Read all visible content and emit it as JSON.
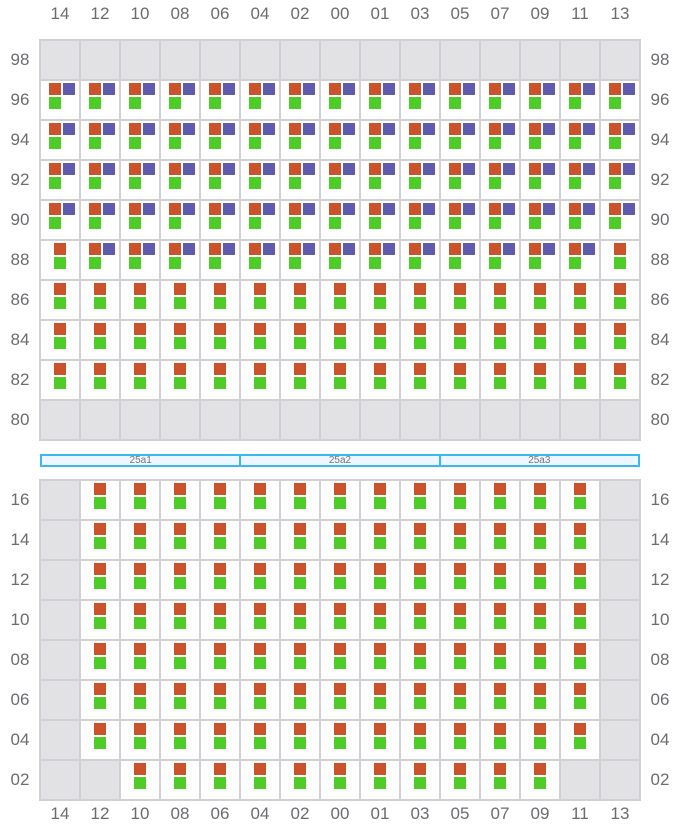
{
  "columns": [
    "14",
    "12",
    "10",
    "08",
    "06",
    "04",
    "02",
    "00",
    "01",
    "03",
    "05",
    "07",
    "09",
    "11",
    "13"
  ],
  "colors": {
    "orange": "#cc5229",
    "purple": "#5e5aad",
    "green": "#4ecc28",
    "empty": "#e2e2e4",
    "banner": "#3bb8f0"
  },
  "legend_codes": {
    "E": "empty",
    "P": "orange+purple+green",
    "S": "orange+green"
  },
  "top_section": {
    "rows": [
      {
        "label": "98",
        "cells": "EEEEEEEEEEEEEEE"
      },
      {
        "label": "96",
        "cells": "PPPPPPPPPPPPPPP"
      },
      {
        "label": "94",
        "cells": "PPPPPPPPPPPPPPP"
      },
      {
        "label": "92",
        "cells": "PPPPPPPPPPPPPPP"
      },
      {
        "label": "90",
        "cells": "PPPPPPPPPPPPPPP"
      },
      {
        "label": "88",
        "cells": "SPPPPPPPPPPPPPS"
      },
      {
        "label": "86",
        "cells": "SSSSSSSSSSSSSSS"
      },
      {
        "label": "84",
        "cells": "SSSSSSSSSSSSSSS"
      },
      {
        "label": "82",
        "cells": "SSSSSSSSSSSSSSS"
      },
      {
        "label": "80",
        "cells": "EEEEEEEEEEEEEEE"
      }
    ]
  },
  "banner": {
    "segments": [
      "25a1",
      "25a2",
      "25a3"
    ]
  },
  "bottom_section": {
    "rows": [
      {
        "label": "16",
        "cells": "ESSSSSSSSSSSSSE"
      },
      {
        "label": "14",
        "cells": "ESSSSSSSSSSSSSE"
      },
      {
        "label": "12",
        "cells": "ESSSSSSSSSSSSSE"
      },
      {
        "label": "10",
        "cells": "ESSSSSSSSSSSSSE"
      },
      {
        "label": "08",
        "cells": "ESSSSSSSSSSSSSE"
      },
      {
        "label": "06",
        "cells": "ESSSSSSSSSSSSSE"
      },
      {
        "label": "04",
        "cells": "ESSSSSSSSSSSSSE"
      },
      {
        "label": "02",
        "cells": "EESSSSSSSSSSSEE"
      }
    ]
  }
}
